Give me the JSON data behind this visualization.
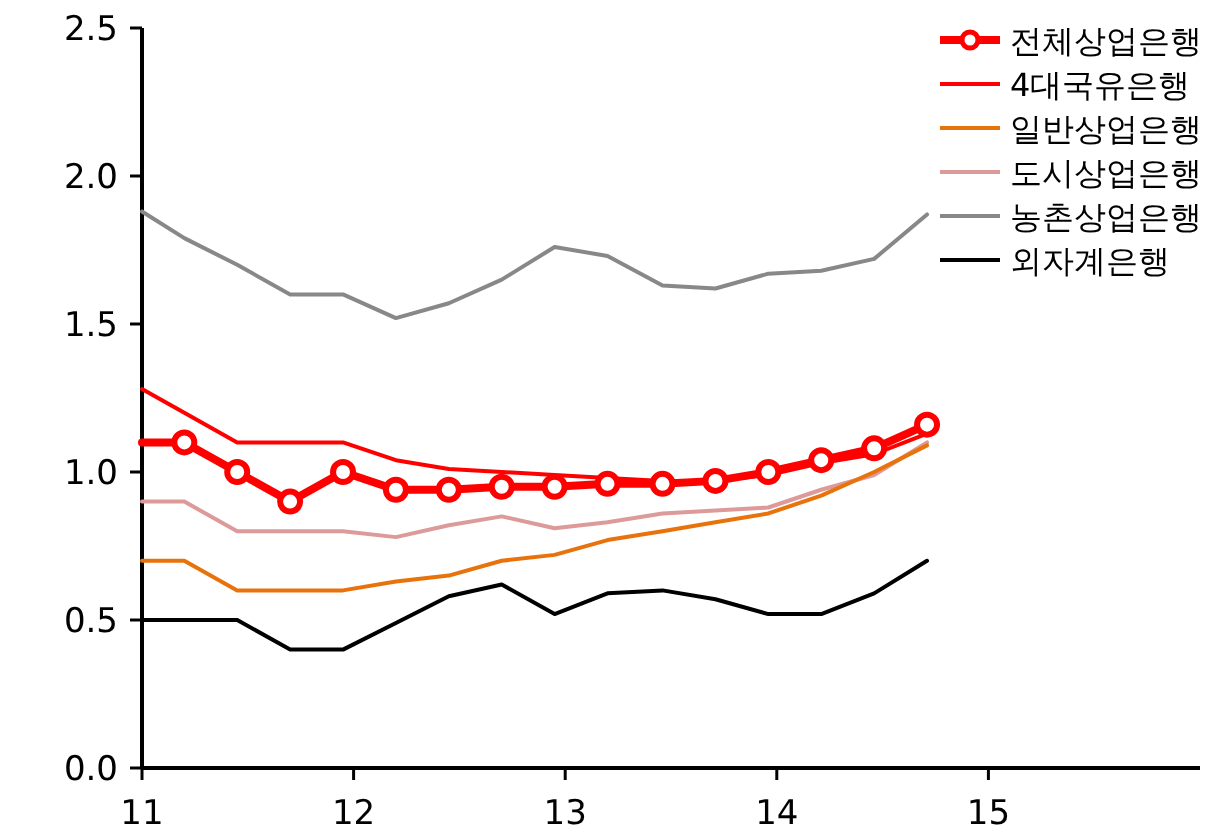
{
  "chart_data": {
    "type": "line",
    "x": [
      11.0,
      11.2,
      11.45,
      11.7,
      11.95,
      12.2,
      12.45,
      12.7,
      12.95,
      13.2,
      13.46,
      13.71,
      13.96,
      14.21,
      14.46,
      14.71
    ],
    "series": [
      {
        "name": "전체상업은행",
        "color": "#ff0000",
        "marker": "circle",
        "values": [
          1.1,
          1.1,
          1.0,
          0.9,
          1.0,
          0.94,
          0.94,
          0.95,
          0.95,
          0.96,
          0.96,
          0.97,
          1.0,
          1.04,
          1.08,
          1.16
        ]
      },
      {
        "name": "4대국유은행",
        "color": "#ff0000",
        "values": [
          1.28,
          1.2,
          1.1,
          1.1,
          1.1,
          1.04,
          1.01,
          1.0,
          0.99,
          0.98,
          0.97,
          0.97,
          0.99,
          1.03,
          1.06,
          1.13
        ]
      },
      {
        "name": "일반상업은행",
        "color": "#e8730c",
        "values": [
          0.7,
          0.7,
          0.6,
          0.6,
          0.6,
          0.63,
          0.65,
          0.7,
          0.72,
          0.77,
          0.8,
          0.83,
          0.86,
          0.92,
          1.0,
          1.09
        ]
      },
      {
        "name": "도시상업은행",
        "color": "#dd9a9a",
        "values": [
          0.9,
          0.9,
          0.8,
          0.8,
          0.8,
          0.78,
          0.82,
          0.85,
          0.81,
          0.83,
          0.86,
          0.87,
          0.88,
          0.94,
          0.99,
          1.1
        ]
      },
      {
        "name": "농촌상업은행",
        "color": "#888888",
        "values": [
          1.88,
          1.79,
          1.7,
          1.6,
          1.6,
          1.52,
          1.57,
          1.65,
          1.76,
          1.73,
          1.63,
          1.62,
          1.67,
          1.68,
          1.72,
          1.87
        ]
      },
      {
        "name": "외자계은행",
        "color": "#000000",
        "values": [
          0.5,
          0.5,
          0.5,
          0.4,
          0.4,
          0.49,
          0.58,
          0.62,
          0.52,
          0.59,
          0.6,
          0.57,
          0.52,
          0.52,
          0.59,
          0.7
        ]
      }
    ],
    "xlim": [
      11,
      16
    ],
    "xticks": [
      11,
      12,
      13,
      14,
      15
    ],
    "ylim": [
      0,
      2.5
    ],
    "yticks": [
      {
        "value": 0,
        "label": "0.0"
      },
      {
        "value": 0.5,
        "label": "0.5"
      },
      {
        "value": 1,
        "label": "1.0"
      },
      {
        "value": 1.5,
        "label": "1.5"
      },
      {
        "value": 2,
        "label": "2.0"
      },
      2.5
    ],
    "grid": false,
    "legend": "top right"
  }
}
